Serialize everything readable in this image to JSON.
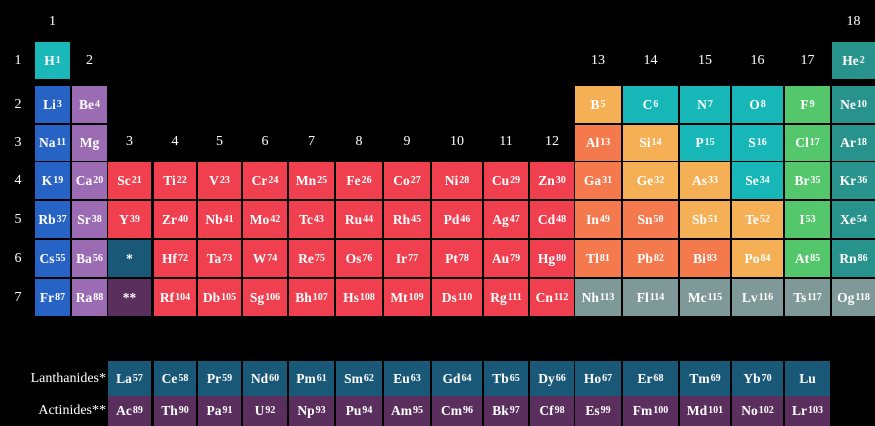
{
  "groups": [
    "1",
    "2",
    "3",
    "4",
    "5",
    "6",
    "7",
    "8",
    "9",
    "10",
    "11",
    "12",
    "13",
    "14",
    "15",
    "16",
    "17",
    "18"
  ],
  "periods": [
    "1",
    "2",
    "3",
    "4",
    "5",
    "6",
    "7"
  ],
  "colors": {
    "hydrogen": "#1ab8b8",
    "alkali": "#2763c4",
    "alkaline": "#9b6bb3",
    "transition": "#f04050",
    "post_transition": "#f47a4e",
    "metalloid": "#f5b055",
    "nonmetal": "#18b7b7",
    "halogen": "#54c66b",
    "noble": "#28938c",
    "unknown": "#7f9999",
    "lanthanide": "#1a5878",
    "actinide": "#5a2f5e"
  },
  "elements": [
    {
      "s": "H",
      "n": "1",
      "c": "hydrogen",
      "r": 0,
      "g": 0
    },
    {
      "s": "He",
      "n": "2",
      "c": "noble",
      "r": 0,
      "g": 17
    },
    {
      "s": "Li",
      "n": "3",
      "c": "alkali",
      "r": 1,
      "g": 0
    },
    {
      "s": "Be",
      "n": "4",
      "c": "alkaline",
      "r": 1,
      "g": 1
    },
    {
      "s": "B",
      "n": "5",
      "c": "metalloid",
      "r": 1,
      "g": 12
    },
    {
      "s": "C",
      "n": "6",
      "c": "nonmetal",
      "r": 1,
      "g": 13
    },
    {
      "s": "N",
      "n": "7",
      "c": "nonmetal",
      "r": 1,
      "g": 14
    },
    {
      "s": "O",
      "n": "8",
      "c": "nonmetal",
      "r": 1,
      "g": 15
    },
    {
      "s": "F",
      "n": "9",
      "c": "halogen",
      "r": 1,
      "g": 16
    },
    {
      "s": "Ne",
      "n": "10",
      "c": "noble",
      "r": 1,
      "g": 17
    },
    {
      "s": "Na",
      "n": "11",
      "c": "alkali",
      "r": 2,
      "g": 0
    },
    {
      "s": "Mg",
      "n": "",
      "c": "alkaline",
      "r": 2,
      "g": 1
    },
    {
      "s": "Al",
      "n": "13",
      "c": "post_transition",
      "r": 2,
      "g": 12
    },
    {
      "s": "Si",
      "n": "14",
      "c": "metalloid",
      "r": 2,
      "g": 13
    },
    {
      "s": "P",
      "n": "15",
      "c": "nonmetal",
      "r": 2,
      "g": 14
    },
    {
      "s": "S",
      "n": "16",
      "c": "nonmetal",
      "r": 2,
      "g": 15
    },
    {
      "s": "Cl",
      "n": "17",
      "c": "halogen",
      "r": 2,
      "g": 16
    },
    {
      "s": "Ar",
      "n": "18",
      "c": "noble",
      "r": 2,
      "g": 17
    },
    {
      "s": "K",
      "n": "19",
      "c": "alkali",
      "r": 3,
      "g": 0
    },
    {
      "s": "Ca",
      "n": "20",
      "c": "alkaline",
      "r": 3,
      "g": 1
    },
    {
      "s": "Sc",
      "n": "21",
      "c": "transition",
      "r": 3,
      "g": 2
    },
    {
      "s": "Ti",
      "n": "22",
      "c": "transition",
      "r": 3,
      "g": 3
    },
    {
      "s": "V",
      "n": "23",
      "c": "transition",
      "r": 3,
      "g": 4
    },
    {
      "s": "Cr",
      "n": "24",
      "c": "transition",
      "r": 3,
      "g": 5
    },
    {
      "s": "Mn",
      "n": "25",
      "c": "transition",
      "r": 3,
      "g": 6
    },
    {
      "s": "Fe",
      "n": "26",
      "c": "transition",
      "r": 3,
      "g": 7
    },
    {
      "s": "Co",
      "n": "27",
      "c": "transition",
      "r": 3,
      "g": 8
    },
    {
      "s": "Ni",
      "n": "28",
      "c": "transition",
      "r": 3,
      "g": 9
    },
    {
      "s": "Cu",
      "n": "29",
      "c": "transition",
      "r": 3,
      "g": 10
    },
    {
      "s": "Zn",
      "n": "30",
      "c": "transition",
      "r": 3,
      "g": 11
    },
    {
      "s": "Ga",
      "n": "31",
      "c": "post_transition",
      "r": 3,
      "g": 12
    },
    {
      "s": "Ge",
      "n": "32",
      "c": "metalloid",
      "r": 3,
      "g": 13
    },
    {
      "s": "As",
      "n": "33",
      "c": "metalloid",
      "r": 3,
      "g": 14
    },
    {
      "s": "Se",
      "n": "34",
      "c": "nonmetal",
      "r": 3,
      "g": 15
    },
    {
      "s": "Br",
      "n": "35",
      "c": "halogen",
      "r": 3,
      "g": 16
    },
    {
      "s": "Kr",
      "n": "36",
      "c": "noble",
      "r": 3,
      "g": 17
    },
    {
      "s": "Rb",
      "n": "37",
      "c": "alkali",
      "r": 4,
      "g": 0
    },
    {
      "s": "Sr",
      "n": "38",
      "c": "alkaline",
      "r": 4,
      "g": 1
    },
    {
      "s": "Y",
      "n": "39",
      "c": "transition",
      "r": 4,
      "g": 2
    },
    {
      "s": "Zr",
      "n": "40",
      "c": "transition",
      "r": 4,
      "g": 3
    },
    {
      "s": "Nb",
      "n": "41",
      "c": "transition",
      "r": 4,
      "g": 4
    },
    {
      "s": "Mo",
      "n": "42",
      "c": "transition",
      "r": 4,
      "g": 5
    },
    {
      "s": "Tc",
      "n": "43",
      "c": "transition",
      "r": 4,
      "g": 6
    },
    {
      "s": "Ru",
      "n": "44",
      "c": "transition",
      "r": 4,
      "g": 7
    },
    {
      "s": "Rh",
      "n": "45",
      "c": "transition",
      "r": 4,
      "g": 8
    },
    {
      "s": "Pd",
      "n": "46",
      "c": "transition",
      "r": 4,
      "g": 9
    },
    {
      "s": "Ag",
      "n": "47",
      "c": "transition",
      "r": 4,
      "g": 10
    },
    {
      "s": "Cd",
      "n": "48",
      "c": "transition",
      "r": 4,
      "g": 11
    },
    {
      "s": "In",
      "n": "49",
      "c": "post_transition",
      "r": 4,
      "g": 12
    },
    {
      "s": "Sn",
      "n": "50",
      "c": "post_transition",
      "r": 4,
      "g": 13
    },
    {
      "s": "Sb",
      "n": "51",
      "c": "metalloid",
      "r": 4,
      "g": 14
    },
    {
      "s": "Te",
      "n": "52",
      "c": "metalloid",
      "r": 4,
      "g": 15
    },
    {
      "s": "I",
      "n": "53",
      "c": "halogen",
      "r": 4,
      "g": 16
    },
    {
      "s": "Xe",
      "n": "54",
      "c": "noble",
      "r": 4,
      "g": 17
    },
    {
      "s": "Cs",
      "n": "55",
      "c": "alkali",
      "r": 5,
      "g": 0
    },
    {
      "s": "Ba",
      "n": "56",
      "c": "alkaline",
      "r": 5,
      "g": 1
    },
    {
      "s": "*",
      "n": "",
      "c": "lanthanide",
      "r": 5,
      "g": 2
    },
    {
      "s": "Hf",
      "n": "72",
      "c": "transition",
      "r": 5,
      "g": 3
    },
    {
      "s": "Ta",
      "n": "73",
      "c": "transition",
      "r": 5,
      "g": 4
    },
    {
      "s": "W",
      "n": "74",
      "c": "transition",
      "r": 5,
      "g": 5
    },
    {
      "s": "Re",
      "n": "75",
      "c": "transition",
      "r": 5,
      "g": 6
    },
    {
      "s": "Os",
      "n": "76",
      "c": "transition",
      "r": 5,
      "g": 7
    },
    {
      "s": "Ir",
      "n": "77",
      "c": "transition",
      "r": 5,
      "g": 8
    },
    {
      "s": "Pt",
      "n": "78",
      "c": "transition",
      "r": 5,
      "g": 9
    },
    {
      "s": "Au",
      "n": "79",
      "c": "transition",
      "r": 5,
      "g": 10
    },
    {
      "s": "Hg",
      "n": "80",
      "c": "transition",
      "r": 5,
      "g": 11
    },
    {
      "s": "Tl",
      "n": "81",
      "c": "post_transition",
      "r": 5,
      "g": 12
    },
    {
      "s": "Pb",
      "n": "82",
      "c": "post_transition",
      "r": 5,
      "g": 13
    },
    {
      "s": "Bi",
      "n": "83",
      "c": "post_transition",
      "r": 5,
      "g": 14
    },
    {
      "s": "Po",
      "n": "84",
      "c": "metalloid",
      "r": 5,
      "g": 15
    },
    {
      "s": "At",
      "n": "85",
      "c": "halogen",
      "r": 5,
      "g": 16
    },
    {
      "s": "Rn",
      "n": "86",
      "c": "noble",
      "r": 5,
      "g": 17
    },
    {
      "s": "Fr",
      "n": "87",
      "c": "alkali",
      "r": 6,
      "g": 0
    },
    {
      "s": "Ra",
      "n": "88",
      "c": "alkaline",
      "r": 6,
      "g": 1
    },
    {
      "s": "**",
      "n": "",
      "c": "actinide",
      "r": 6,
      "g": 2
    },
    {
      "s": "Rf",
      "n": "104",
      "c": "transition",
      "r": 6,
      "g": 3
    },
    {
      "s": "Db",
      "n": "105",
      "c": "transition",
      "r": 6,
      "g": 4
    },
    {
      "s": "Sg",
      "n": "106",
      "c": "transition",
      "r": 6,
      "g": 5
    },
    {
      "s": "Bh",
      "n": "107",
      "c": "transition",
      "r": 6,
      "g": 6
    },
    {
      "s": "Hs",
      "n": "108",
      "c": "transition",
      "r": 6,
      "g": 7
    },
    {
      "s": "Mt",
      "n": "109",
      "c": "transition",
      "r": 6,
      "g": 8
    },
    {
      "s": "Ds",
      "n": "110",
      "c": "transition",
      "r": 6,
      "g": 9
    },
    {
      "s": "Rg",
      "n": "111",
      "c": "transition",
      "r": 6,
      "g": 10
    },
    {
      "s": "Cn",
      "n": "112",
      "c": "transition",
      "r": 6,
      "g": 11
    },
    {
      "s": "Nh",
      "n": "113",
      "c": "unknown",
      "r": 6,
      "g": 12
    },
    {
      "s": "Fl",
      "n": "114",
      "c": "unknown",
      "r": 6,
      "g": 13
    },
    {
      "s": "Mc",
      "n": "115",
      "c": "unknown",
      "r": 6,
      "g": 14
    },
    {
      "s": "Lv",
      "n": "116",
      "c": "unknown",
      "r": 6,
      "g": 15
    },
    {
      "s": "Ts",
      "n": "117",
      "c": "unknown",
      "r": 6,
      "g": 16
    },
    {
      "s": "Og",
      "n": "118",
      "c": "unknown",
      "r": 6,
      "g": 17
    }
  ],
  "lanthanides": {
    "label": "Lanthanides*",
    "items": [
      {
        "s": "La",
        "n": "57"
      },
      {
        "s": "Ce",
        "n": "58"
      },
      {
        "s": "Pr",
        "n": "59"
      },
      {
        "s": "Nd",
        "n": "60"
      },
      {
        "s": "Pm",
        "n": "61"
      },
      {
        "s": "Sm",
        "n": "62"
      },
      {
        "s": "Eu",
        "n": "63"
      },
      {
        "s": "Gd",
        "n": "64"
      },
      {
        "s": "Tb",
        "n": "65"
      },
      {
        "s": "Dy",
        "n": "66"
      },
      {
        "s": "Ho",
        "n": "67"
      },
      {
        "s": "Er",
        "n": "68"
      },
      {
        "s": "Tm",
        "n": "69"
      },
      {
        "s": "Yb",
        "n": "70"
      },
      {
        "s": "Lu",
        "n": ""
      }
    ]
  },
  "actinides": {
    "label": "Actinides**",
    "items": [
      {
        "s": "Ac",
        "n": "89"
      },
      {
        "s": "Th",
        "n": "90"
      },
      {
        "s": "Pa",
        "n": "91"
      },
      {
        "s": "U",
        "n": "92"
      },
      {
        "s": "Np",
        "n": "93"
      },
      {
        "s": "Pu",
        "n": "94"
      },
      {
        "s": "Am",
        "n": "95"
      },
      {
        "s": "Cm",
        "n": "96"
      },
      {
        "s": "Bk",
        "n": "97"
      },
      {
        "s": "Cf",
        "n": "98"
      },
      {
        "s": "Es",
        "n": "99"
      },
      {
        "s": "Fm",
        "n": "100"
      },
      {
        "s": "Md",
        "n": "101"
      },
      {
        "s": "No",
        "n": "102"
      },
      {
        "s": "Lr",
        "n": "103"
      }
    ]
  }
}
